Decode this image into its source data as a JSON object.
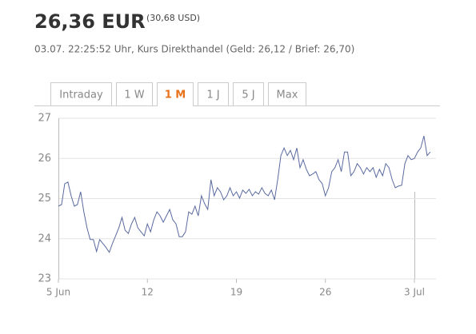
{
  "header": {
    "price": "26,36 EUR",
    "price_alt": "(30,68 USD)",
    "info": "03.07. 22:25:52 Uhr, Kurs Direkthandel (Geld: 26,12 / Brief: 26,70)"
  },
  "tabs": {
    "items": [
      "Intraday",
      "1 W",
      "1 M",
      "1 J",
      "5 J",
      "Max"
    ],
    "active": "1 M"
  },
  "chart_data": {
    "type": "line",
    "color": "#5a6aa0",
    "grid": true,
    "xlim": [
      5,
      34.7
    ],
    "ylim": [
      23,
      27
    ],
    "xticks": [
      {
        "value": 5,
        "label": "5 Jun"
      },
      12,
      19,
      26,
      {
        "value": 33,
        "label": "3 Jul"
      }
    ],
    "yticks": [
      23,
      24,
      25,
      26,
      27
    ],
    "x": [
      5,
      5.25,
      5.5,
      5.75,
      6,
      6.25,
      6.5,
      6.75,
      7,
      7.25,
      7.5,
      7.75,
      8,
      8.25,
      8.5,
      8.75,
      9,
      9.25,
      9.5,
      9.75,
      10,
      10.25,
      10.5,
      10.75,
      11,
      11.25,
      11.5,
      11.75,
      12,
      12.25,
      12.5,
      12.75,
      13,
      13.25,
      13.5,
      13.75,
      14,
      14.25,
      14.5,
      14.75,
      15,
      15.25,
      15.5,
      15.75,
      16,
      16.25,
      16.5,
      16.75,
      17,
      17.25,
      17.5,
      17.75,
      18,
      18.25,
      18.5,
      18.75,
      19,
      19.25,
      19.5,
      19.75,
      20,
      20.25,
      20.5,
      20.75,
      21,
      21.25,
      21.5,
      21.75,
      22,
      22.25,
      22.5,
      22.75,
      23,
      23.25,
      23.5,
      23.75,
      24,
      24.25,
      24.5,
      24.75,
      25,
      25.25,
      25.5,
      25.75,
      26,
      26.25,
      26.5,
      26.75,
      27,
      27.25,
      27.5,
      27.75,
      28,
      28.25,
      28.5,
      28.75,
      29,
      29.25,
      29.5,
      29.75,
      30,
      30.25,
      30.5,
      30.75,
      31,
      31.25,
      31.5,
      31.75,
      32,
      32.25,
      32.5,
      32.75,
      33,
      33.25,
      33.5,
      33.75,
      34,
      34.25
    ],
    "values": [
      24.81,
      24.85,
      25.37,
      25.41,
      25.07,
      24.81,
      24.85,
      25.17,
      24.67,
      24.27,
      23.98,
      23.98,
      23.68,
      23.98,
      23.88,
      23.78,
      23.66,
      23.88,
      24.07,
      24.27,
      24.53,
      24.21,
      24.13,
      24.37,
      24.53,
      24.27,
      24.17,
      24.07,
      24.37,
      24.17,
      24.47,
      24.67,
      24.57,
      24.41,
      24.57,
      24.73,
      24.47,
      24.37,
      24.05,
      24.05,
      24.17,
      24.67,
      24.61,
      24.81,
      24.57,
      25.07,
      24.87,
      24.73,
      25.47,
      25.07,
      25.27,
      25.17,
      24.97,
      25.07,
      25.27,
      25.07,
      25.17,
      25.01,
      25.21,
      25.13,
      25.23,
      25.07,
      25.17,
      25.11,
      25.27,
      25.13,
      25.07,
      25.21,
      24.97,
      25.47,
      26.07,
      26.26,
      26.07,
      26.2,
      25.97,
      26.26,
      25.77,
      25.97,
      25.73,
      25.57,
      25.61,
      25.67,
      25.47,
      25.37,
      25.07,
      25.27,
      25.67,
      25.77,
      25.97,
      25.67,
      26.16,
      26.16,
      25.57,
      25.67,
      25.87,
      25.77,
      25.61,
      25.77,
      25.67,
      25.77,
      25.53,
      25.73,
      25.57,
      25.87,
      25.77,
      25.47,
      25.27,
      25.31,
      25.33,
      25.87,
      26.07,
      25.97,
      26.0,
      26.16,
      26.26,
      26.56,
      26.07,
      26.16
    ]
  }
}
